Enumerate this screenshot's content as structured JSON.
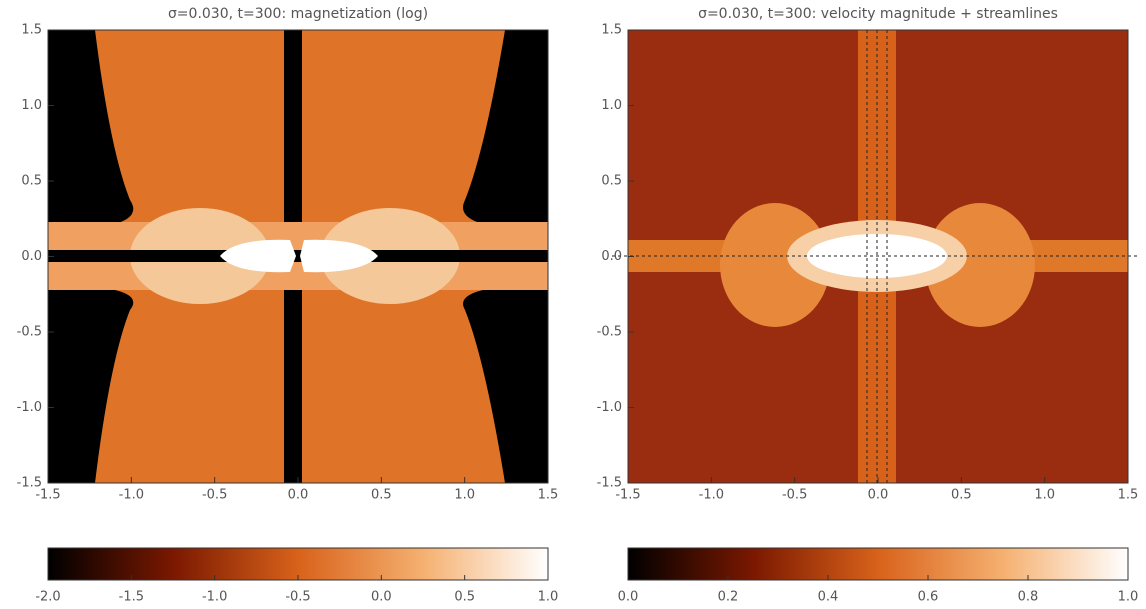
{
  "chart_data": [
    {
      "type": "image",
      "title": "σ=0.030, t=300: magnetization (log)",
      "xlim": [
        -1.5,
        1.5
      ],
      "xticks": [
        -1.5,
        {
          "value": -1,
          "label": "-1.0"
        },
        -0.5,
        {
          "value": 0,
          "label": "0.0"
        },
        0.5,
        {
          "value": 1,
          "label": "1.0"
        },
        1.5
      ],
      "ylim": [
        -1.5,
        1.5
      ],
      "yticks": [
        -1.5,
        {
          "value": -1,
          "label": "-1.0"
        },
        -0.5,
        {
          "value": 0,
          "label": "0.0"
        },
        0.5,
        {
          "value": 1,
          "label": "1.0"
        },
        1.5
      ],
      "colormap": [
        "#000000",
        "#7a1800",
        "#d8621a",
        "#f5b070",
        "#ffffff"
      ],
      "colorbar_lim": [
        -2,
        1
      ],
      "colorbar_ticks": [
        {
          "value": -2,
          "label": "-2.0"
        },
        -1.5,
        {
          "value": -1,
          "label": "-1.0"
        },
        -0.5,
        {
          "value": 0,
          "label": "0.0"
        },
        0.5,
        {
          "value": 1,
          "label": "1.0"
        }
      ]
    },
    {
      "type": "image",
      "title": "σ=0.030, t=300: velocity magnitude + streamlines",
      "xlim": [
        -1.5,
        1.5
      ],
      "xticks": [
        -1.5,
        {
          "value": -1,
          "label": "-1.0"
        },
        -0.5,
        {
          "value": 0,
          "label": "0.0"
        },
        0.5,
        {
          "value": 1,
          "label": "1.0"
        },
        1.5
      ],
      "ylim": [
        -1.5,
        1.5
      ],
      "yticks": [
        -1.5,
        {
          "value": -1,
          "label": "-1.0"
        },
        -0.5,
        {
          "value": 0,
          "label": "0.0"
        },
        0.5,
        {
          "value": 1,
          "label": "1.0"
        },
        1.5
      ],
      "colormap": [
        "#000000",
        "#7a1800",
        "#d8621a",
        "#f5b070",
        "#ffffff"
      ],
      "colorbar_lim": [
        0,
        1
      ],
      "colorbar_ticks": [
        {
          "value": 0,
          "label": "0.0"
        },
        0.2,
        0.4,
        0.6,
        0.8,
        {
          "value": 1,
          "label": "1.0"
        }
      ]
    }
  ]
}
